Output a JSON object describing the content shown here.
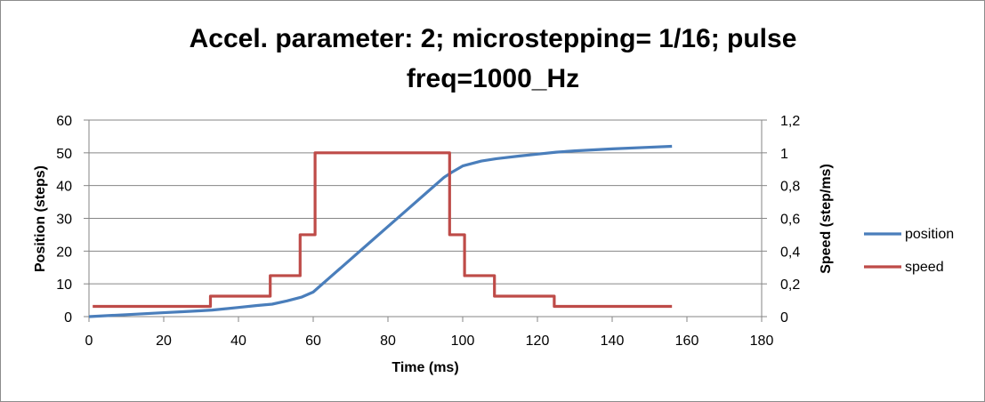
{
  "chart_data": {
    "type": "line",
    "title_lines": [
      "Accel. parameter: 2; microstepping= 1/16; pulse",
      "freq=1000_Hz"
    ],
    "xlabel": "Time (ms)",
    "ylabel": "Position (steps)",
    "y2label": "Speed (step/ms)",
    "xlim": [
      0,
      180
    ],
    "ylim": [
      0,
      60
    ],
    "y2lim": [
      0,
      1.2
    ],
    "x_ticks": [
      "0",
      "20",
      "40",
      "60",
      "80",
      "100",
      "120",
      "140",
      "160",
      "180"
    ],
    "y_ticks": [
      "0",
      "10",
      "20",
      "30",
      "40",
      "50",
      "60"
    ],
    "y2_ticks": [
      "0",
      "0,2",
      "0,4",
      "0,6",
      "0,8",
      "1",
      "1,2"
    ],
    "grid": "horizontal",
    "legend_position": "right",
    "series": [
      {
        "name": "position",
        "axis": "left",
        "color": "#4a7ebb",
        "points": [
          [
            0,
            0
          ],
          [
            5,
            0.3
          ],
          [
            10,
            0.6
          ],
          [
            15,
            0.9
          ],
          [
            20,
            1.2
          ],
          [
            25,
            1.5
          ],
          [
            30,
            1.8
          ],
          [
            33,
            2.0
          ],
          [
            40,
            2.8
          ],
          [
            45,
            3.4
          ],
          [
            49,
            3.8
          ],
          [
            53,
            4.8
          ],
          [
            57,
            6.0
          ],
          [
            60,
            7.5
          ],
          [
            62,
            9.5
          ],
          [
            65,
            12.5
          ],
          [
            70,
            17.5
          ],
          [
            75,
            22.5
          ],
          [
            80,
            27.5
          ],
          [
            85,
            32.5
          ],
          [
            90,
            37.5
          ],
          [
            95,
            42.5
          ],
          [
            97,
            44.0
          ],
          [
            100,
            46.0
          ],
          [
            105,
            47.5
          ],
          [
            109,
            48.2
          ],
          [
            115,
            49.0
          ],
          [
            120,
            49.6
          ],
          [
            125,
            50.2
          ],
          [
            130,
            50.6
          ],
          [
            140,
            51.2
          ],
          [
            150,
            51.7
          ],
          [
            156,
            52.0
          ]
        ]
      },
      {
        "name": "speed",
        "axis": "right",
        "color": "#be4b48",
        "points": [
          [
            1,
            0.0625
          ],
          [
            32.5,
            0.0625
          ],
          [
            32.5,
            0.125
          ],
          [
            48.5,
            0.125
          ],
          [
            48.5,
            0.25
          ],
          [
            56.5,
            0.25
          ],
          [
            56.5,
            0.5
          ],
          [
            60.5,
            0.5
          ],
          [
            60.5,
            1.0
          ],
          [
            96.5,
            1.0
          ],
          [
            96.5,
            0.5
          ],
          [
            100.5,
            0.5
          ],
          [
            100.5,
            0.25
          ],
          [
            108.5,
            0.25
          ],
          [
            108.5,
            0.125
          ],
          [
            124.5,
            0.125
          ],
          [
            124.5,
            0.0625
          ],
          [
            156,
            0.0625
          ]
        ]
      }
    ]
  }
}
